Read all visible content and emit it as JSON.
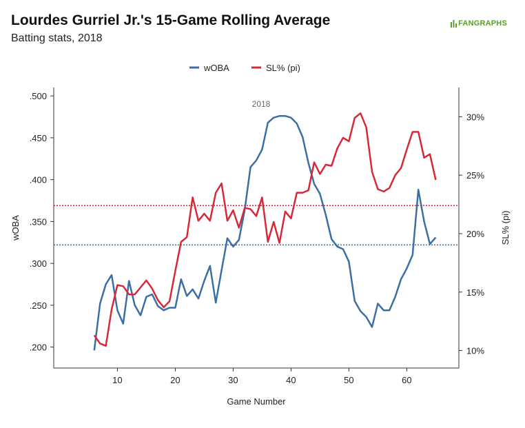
{
  "header": {
    "title": "Lourdes Gurriel Jr.'s 15-Game Rolling Average",
    "subtitle": "Batting stats, 2018",
    "logo_text": "FANGRAPHS"
  },
  "colors": {
    "woba": "#3a6ea5",
    "sl": "#d62839",
    "logo": "#5aa028"
  },
  "chart_data": {
    "type": "line",
    "title": "Lourdes Gurriel Jr.'s 15-Game Rolling Average",
    "subtitle": "Batting stats, 2018",
    "xlabel": "Game Number",
    "ylabel": "wOBA",
    "y2label": "SL% (pi)",
    "xlim": [
      -1,
      69
    ],
    "ylim": [
      0.175,
      0.51
    ],
    "y2lim": [
      0.085,
      0.325
    ],
    "xticks": [
      10,
      20,
      30,
      40,
      50,
      60
    ],
    "yticks": [
      0.2,
      0.25,
      0.3,
      0.35,
      0.4,
      0.45,
      0.5
    ],
    "ytick_labels": [
      ".200",
      ".250",
      ".300",
      ".350",
      ".400",
      ".450",
      ".500"
    ],
    "y2ticks": [
      0.1,
      0.15,
      0.2,
      0.25,
      0.3
    ],
    "y2tick_labels": [
      "10%",
      "15%",
      "20%",
      "25%",
      "30%"
    ],
    "annotation": "2018",
    "legend_position": "top-center",
    "grid": false,
    "reference_lines": [
      {
        "series": "wOBA",
        "axis": "left",
        "value": 0.322
      },
      {
        "series": "SL% (pi)",
        "axis": "right",
        "value": 0.224
      }
    ],
    "series": [
      {
        "name": "wOBA",
        "axis": "left",
        "x": [
          6,
          7,
          8,
          9,
          10,
          11,
          12,
          13,
          14,
          15,
          16,
          17,
          18,
          19,
          20,
          21,
          22,
          23,
          24,
          25,
          26,
          27,
          28,
          29,
          30,
          31,
          32,
          33,
          34,
          35,
          36,
          37,
          38,
          39,
          40,
          41,
          42,
          43,
          44,
          45,
          46,
          47,
          48,
          49,
          50,
          51,
          52,
          53,
          54,
          55,
          56,
          57,
          58,
          59,
          60,
          61,
          62,
          63,
          64,
          65
        ],
        "y": [
          0.196,
          0.252,
          0.275,
          0.286,
          0.244,
          0.228,
          0.279,
          0.25,
          0.238,
          0.26,
          0.263,
          0.249,
          0.244,
          0.247,
          0.247,
          0.281,
          0.261,
          0.269,
          0.258,
          0.279,
          0.297,
          0.253,
          0.292,
          0.33,
          0.32,
          0.328,
          0.364,
          0.415,
          0.423,
          0.436,
          0.468,
          0.474,
          0.476,
          0.476,
          0.474,
          0.467,
          0.451,
          0.42,
          0.395,
          0.383,
          0.358,
          0.329,
          0.32,
          0.317,
          0.302,
          0.255,
          0.243,
          0.236,
          0.224,
          0.252,
          0.244,
          0.244,
          0.26,
          0.281,
          0.294,
          0.31,
          0.388,
          0.35,
          0.323,
          0.331
        ]
      },
      {
        "name": "SL% (pi)",
        "axis": "right",
        "x": [
          6,
          7,
          8,
          9,
          10,
          11,
          12,
          13,
          14,
          15,
          16,
          17,
          18,
          19,
          20,
          21,
          22,
          23,
          24,
          25,
          26,
          27,
          28,
          29,
          30,
          31,
          32,
          33,
          34,
          35,
          36,
          37,
          38,
          39,
          40,
          41,
          42,
          43,
          44,
          45,
          46,
          47,
          48,
          49,
          50,
          51,
          52,
          53,
          54,
          55,
          56,
          57,
          58,
          59,
          60,
          61,
          62,
          63,
          64,
          65
        ],
        "y": [
          0.113,
          0.106,
          0.104,
          0.135,
          0.156,
          0.155,
          0.148,
          0.148,
          0.154,
          0.16,
          0.153,
          0.143,
          0.137,
          0.142,
          0.168,
          0.193,
          0.197,
          0.231,
          0.211,
          0.217,
          0.211,
          0.235,
          0.243,
          0.211,
          0.22,
          0.205,
          0.222,
          0.221,
          0.215,
          0.231,
          0.193,
          0.21,
          0.192,
          0.219,
          0.213,
          0.235,
          0.235,
          0.237,
          0.261,
          0.251,
          0.259,
          0.258,
          0.273,
          0.282,
          0.279,
          0.299,
          0.303,
          0.291,
          0.253,
          0.238,
          0.236,
          0.239,
          0.25,
          0.256,
          0.272,
          0.287,
          0.287,
          0.265,
          0.268,
          0.246
        ]
      }
    ]
  }
}
